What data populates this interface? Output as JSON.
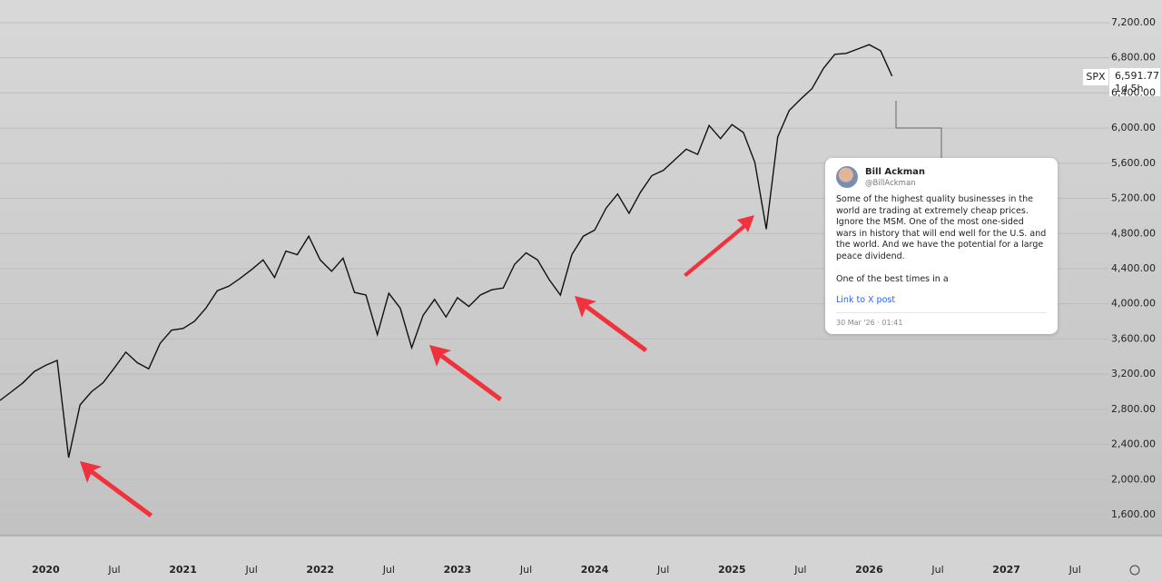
{
  "chart_data": {
    "type": "line",
    "x": [
      "2019-09",
      "2019-10",
      "2019-11",
      "2019-12",
      "2020-01",
      "2020-02",
      "2020-03",
      "2020-04",
      "2020-05",
      "2020-06",
      "2020-07",
      "2020-08",
      "2020-09",
      "2020-10",
      "2020-11",
      "2020-12",
      "2021-01",
      "2021-02",
      "2021-03",
      "2021-04",
      "2021-05",
      "2021-06",
      "2021-07",
      "2021-08",
      "2021-09",
      "2021-10",
      "2021-11",
      "2021-12",
      "2022-01",
      "2022-02",
      "2022-03",
      "2022-04",
      "2022-05",
      "2022-06",
      "2022-07",
      "2022-08",
      "2022-09",
      "2022-10",
      "2022-11",
      "2022-12",
      "2023-01",
      "2023-02",
      "2023-03",
      "2023-04",
      "2023-05",
      "2023-06",
      "2023-07",
      "2023-08",
      "2023-09",
      "2023-10",
      "2023-11",
      "2023-12",
      "2024-01",
      "2024-02",
      "2024-03",
      "2024-04",
      "2024-05",
      "2024-06",
      "2024-07",
      "2024-08",
      "2024-09",
      "2024-10",
      "2024-11",
      "2024-12",
      "2025-01",
      "2025-02",
      "2025-03",
      "2025-04",
      "2025-05",
      "2025-06",
      "2025-07",
      "2025-08",
      "2025-09",
      "2025-10",
      "2025-11",
      "2025-12",
      "2026-01",
      "2026-02",
      "2026-03"
    ],
    "series": [
      {
        "name": "SPX",
        "color": "#111111",
        "values": [
          2900,
          3000,
          3100,
          3230,
          3300,
          3356,
          2250,
          2850,
          3000,
          3100,
          3270,
          3450,
          3330,
          3260,
          3550,
          3700,
          3720,
          3800,
          3950,
          4150,
          4200,
          4290,
          4390,
          4500,
          4300,
          4600,
          4560,
          4770,
          4500,
          4370,
          4520,
          4130,
          4100,
          3650,
          4120,
          3950,
          3500,
          3870,
          4050,
          3850,
          4070,
          3970,
          4100,
          4160,
          4180,
          4450,
          4580,
          4500,
          4280,
          4100,
          4560,
          4770,
          4840,
          5090,
          5250,
          5030,
          5270,
          5460,
          5520,
          5640,
          5760,
          5700,
          6030,
          5880,
          6040,
          5950,
          5610,
          4850,
          5900,
          6200,
          6330,
          6450,
          6680,
          6840,
          6850,
          6900,
          6950,
          6880,
          6591.77
        ]
      }
    ],
    "xlim": [
      "2019-09",
      "2027-10"
    ],
    "xticks": [
      {
        "value": "2020-01",
        "label": "2020"
      },
      {
        "value": "2020-07",
        "label": "Jul"
      },
      {
        "value": "2021-01",
        "label": "2021"
      },
      {
        "value": "2021-07",
        "label": "Jul"
      },
      {
        "value": "2022-01",
        "label": "2022"
      },
      {
        "value": "2022-07",
        "label": "Jul"
      },
      {
        "value": "2023-01",
        "label": "2023"
      },
      {
        "value": "2023-07",
        "label": "Jul"
      },
      {
        "value": "2024-01",
        "label": "2024"
      },
      {
        "value": "2024-07",
        "label": "Jul"
      },
      {
        "value": "2025-01",
        "label": "2025"
      },
      {
        "value": "2025-07",
        "label": "Jul"
      },
      {
        "value": "2026-01",
        "label": "2026"
      },
      {
        "value": "2026-07",
        "label": "Jul"
      },
      {
        "value": "2027-01",
        "label": "2027"
      },
      {
        "value": "2027-07",
        "label": "Jul"
      }
    ],
    "ylim": [
      1362,
      7458
    ],
    "yticks": [
      {
        "value": 1600,
        "label": "1,600.00"
      },
      {
        "value": 2000,
        "label": "2,000.00"
      },
      {
        "value": 2400,
        "label": "2,400.00"
      },
      {
        "value": 2800,
        "label": "2,800.00"
      },
      {
        "value": 3200,
        "label": "3,200.00"
      },
      {
        "value": 3600,
        "label": "3,600.00"
      },
      {
        "value": 4000,
        "label": "4,000.00"
      },
      {
        "value": 4400,
        "label": "4,400.00"
      },
      {
        "value": 4800,
        "label": "4,800.00"
      },
      {
        "value": 5200,
        "label": "5,200.00"
      },
      {
        "value": 5600,
        "label": "5,600.00"
      },
      {
        "value": 6000,
        "label": "6,000.00"
      },
      {
        "value": 6400,
        "label": "6,400.00"
      },
      {
        "value": 6800,
        "label": "6,800.00"
      },
      {
        "value": 7200,
        "label": "7,200.00"
      }
    ],
    "grid": true,
    "price_label": {
      "value": "6,591.77",
      "countdown": "1d 5h"
    },
    "post": {
      "name": "Bill Ackman",
      "handle": "@BillAckman",
      "text": "Some of the highest quality businesses in the world are trading at extremely cheap prices. Ignore the MSM. One of the most one-sided wars in history that will end well for the U.S. and the world. And we have the potential for a large peace dividend.",
      "text2": "One of the best times in a",
      "link": "Link to X post",
      "time": "30 Mar '26 · 01:41"
    }
  }
}
